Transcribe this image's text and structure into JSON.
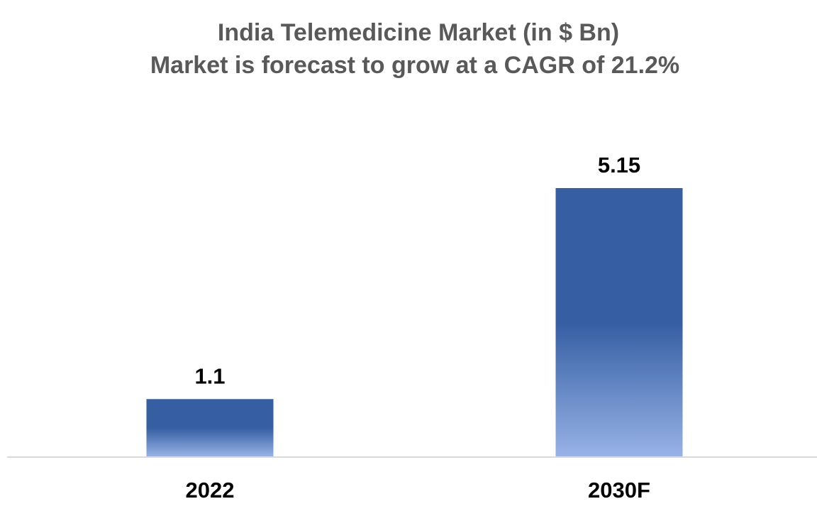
{
  "chart_data": {
    "type": "bar",
    "title": "India Telemedicine Market (in $ Bn)",
    "subtitle": "Market is forecast to grow at a CAGR of 21.2%",
    "categories": [
      "2022",
      "2030F"
    ],
    "values": [
      1.1,
      5.15
    ],
    "data_labels": [
      "1.1",
      "5.15"
    ],
    "xlabel": "",
    "ylabel": "",
    "ylim": [
      0,
      5.15
    ],
    "grid": false,
    "legend": "none",
    "colors": {
      "bar_top": "#355ea3",
      "bar_bottom": "#97b2e6",
      "axis": "#d9d9d9",
      "title": "#595959",
      "label": "#000000"
    }
  }
}
